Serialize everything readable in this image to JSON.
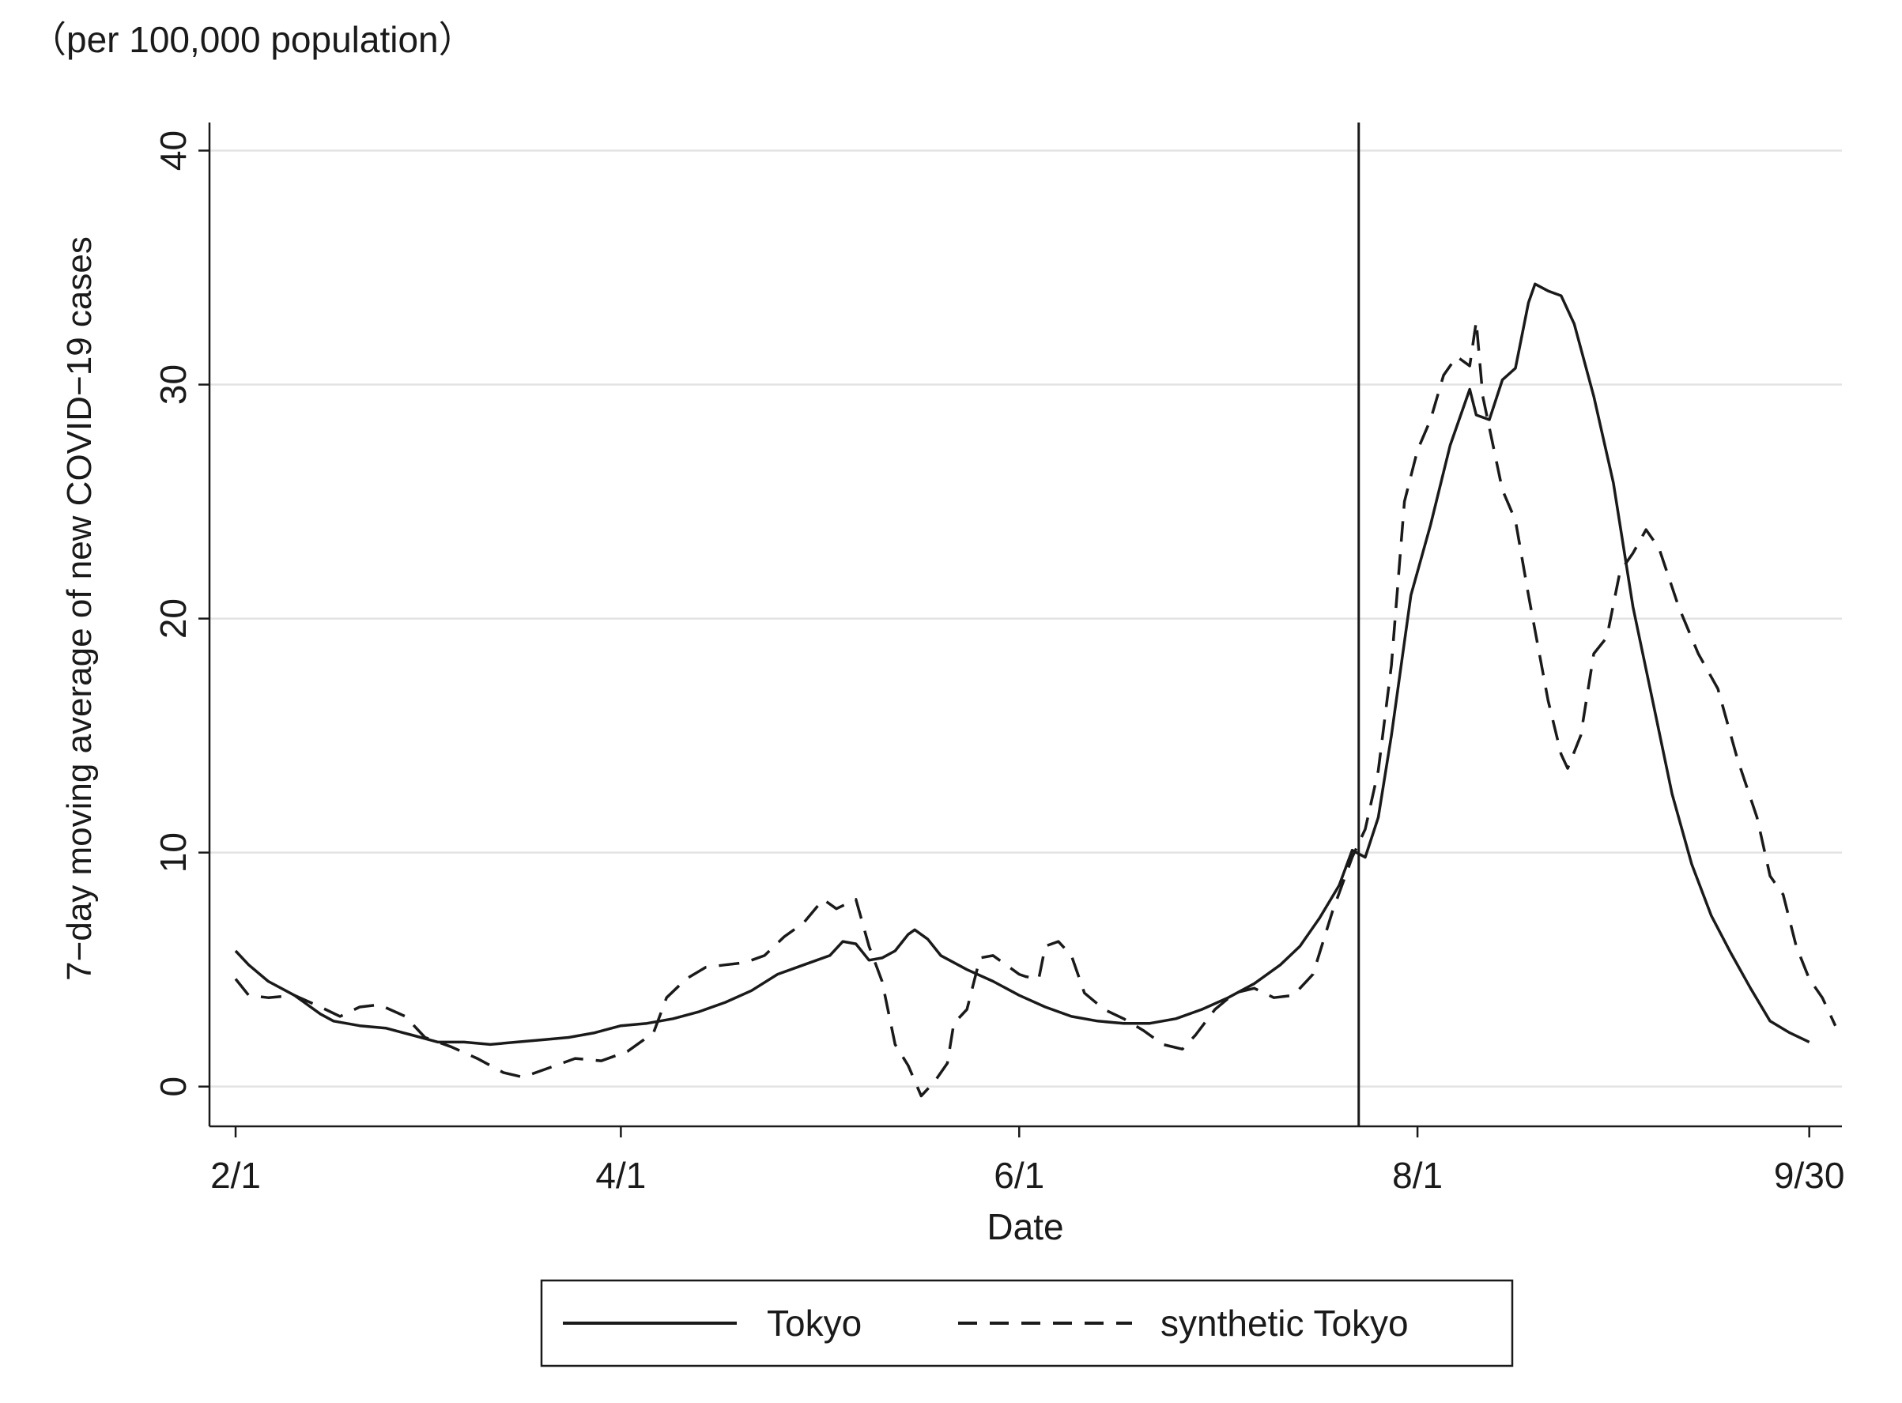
{
  "chart_data": {
    "type": "line",
    "unit_note": "（per 100,000 population）",
    "xlabel": "Date",
    "ylabel": "7−day moving average of new COVID−19 cases",
    "ylim": [
      -1.7,
      41.2
    ],
    "yticks": [
      0,
      10,
      20,
      30,
      40
    ],
    "xticks": [
      {
        "x": "2021-02-01",
        "label": "2/1"
      },
      {
        "x": "2021-04-01",
        "label": "4/1"
      },
      {
        "x": "2021-06-01",
        "label": "6/1"
      },
      {
        "x": "2021-08-01",
        "label": "8/1"
      },
      {
        "x": "2021-09-30",
        "label": "9/30"
      }
    ],
    "xlim": [
      "2021-01-28",
      "2021-10-05"
    ],
    "grid": "horizontal",
    "vertical_line_x": "2021-07-23",
    "legend": {
      "placement": "bottom",
      "entries": [
        "Tokyo",
        "synthetic Tokyo"
      ]
    },
    "colors": {
      "line": "#1a1a1a",
      "grid": "#e3e3e3"
    },
    "series": [
      {
        "name": "Tokyo",
        "style": "solid",
        "points": [
          [
            "2021-02-01",
            5.8
          ],
          [
            "2021-02-03",
            5.2
          ],
          [
            "2021-02-06",
            4.5
          ],
          [
            "2021-02-10",
            3.9
          ],
          [
            "2021-02-14",
            3.1
          ],
          [
            "2021-02-16",
            2.8
          ],
          [
            "2021-02-20",
            2.6
          ],
          [
            "2021-02-24",
            2.5
          ],
          [
            "2021-02-28",
            2.2
          ],
          [
            "2021-03-04",
            1.9
          ],
          [
            "2021-03-08",
            1.9
          ],
          [
            "2021-03-12",
            1.8
          ],
          [
            "2021-03-16",
            1.9
          ],
          [
            "2021-03-20",
            2.0
          ],
          [
            "2021-03-24",
            2.1
          ],
          [
            "2021-03-28",
            2.3
          ],
          [
            "2021-04-01",
            2.6
          ],
          [
            "2021-04-05",
            2.7
          ],
          [
            "2021-04-09",
            2.9
          ],
          [
            "2021-04-13",
            3.2
          ],
          [
            "2021-04-17",
            3.6
          ],
          [
            "2021-04-21",
            4.1
          ],
          [
            "2021-04-25",
            4.8
          ],
          [
            "2021-04-29",
            5.2
          ],
          [
            "2021-05-03",
            5.6
          ],
          [
            "2021-05-05",
            6.2
          ],
          [
            "2021-05-07",
            6.1
          ],
          [
            "2021-05-09",
            5.4
          ],
          [
            "2021-05-11",
            5.5
          ],
          [
            "2021-05-13",
            5.8
          ],
          [
            "2021-05-15",
            6.5
          ],
          [
            "2021-05-16",
            6.7
          ],
          [
            "2021-05-18",
            6.3
          ],
          [
            "2021-05-20",
            5.6
          ],
          [
            "2021-05-24",
            5.0
          ],
          [
            "2021-05-28",
            4.5
          ],
          [
            "2021-06-01",
            3.9
          ],
          [
            "2021-06-05",
            3.4
          ],
          [
            "2021-06-09",
            3.0
          ],
          [
            "2021-06-13",
            2.8
          ],
          [
            "2021-06-17",
            2.7
          ],
          [
            "2021-06-21",
            2.7
          ],
          [
            "2021-06-25",
            2.9
          ],
          [
            "2021-06-29",
            3.3
          ],
          [
            "2021-07-03",
            3.8
          ],
          [
            "2021-07-07",
            4.4
          ],
          [
            "2021-07-11",
            5.2
          ],
          [
            "2021-07-14",
            6.0
          ],
          [
            "2021-07-17",
            7.2
          ],
          [
            "2021-07-20",
            8.6
          ],
          [
            "2021-07-22",
            10.1
          ],
          [
            "2021-07-24",
            9.8
          ],
          [
            "2021-07-26",
            11.5
          ],
          [
            "2021-07-28",
            15.0
          ],
          [
            "2021-07-31",
            21.0
          ],
          [
            "2021-08-03",
            24.0
          ],
          [
            "2021-08-06",
            27.4
          ],
          [
            "2021-08-09",
            29.8
          ],
          [
            "2021-08-10",
            28.7
          ],
          [
            "2021-08-12",
            28.5
          ],
          [
            "2021-08-14",
            30.2
          ],
          [
            "2021-08-16",
            30.7
          ],
          [
            "2021-08-18",
            33.5
          ],
          [
            "2021-08-19",
            34.3
          ],
          [
            "2021-08-21",
            34.0
          ],
          [
            "2021-08-23",
            33.8
          ],
          [
            "2021-08-25",
            32.6
          ],
          [
            "2021-08-28",
            29.5
          ],
          [
            "2021-08-31",
            25.8
          ],
          [
            "2021-09-03",
            20.5
          ],
          [
            "2021-09-06",
            16.5
          ],
          [
            "2021-09-09",
            12.5
          ],
          [
            "2021-09-12",
            9.5
          ],
          [
            "2021-09-15",
            7.3
          ],
          [
            "2021-09-18",
            5.7
          ],
          [
            "2021-09-21",
            4.2
          ],
          [
            "2021-09-24",
            2.8
          ],
          [
            "2021-09-27",
            2.3
          ],
          [
            "2021-09-30",
            1.9
          ]
        ]
      },
      {
        "name": "synthetic Tokyo",
        "style": "dashed",
        "points": [
          [
            "2021-02-01",
            4.6
          ],
          [
            "2021-02-03",
            3.9
          ],
          [
            "2021-02-06",
            3.8
          ],
          [
            "2021-02-10",
            3.9
          ],
          [
            "2021-02-14",
            3.4
          ],
          [
            "2021-02-17",
            3.0
          ],
          [
            "2021-02-20",
            3.4
          ],
          [
            "2021-02-23",
            3.5
          ],
          [
            "2021-02-27",
            3.0
          ],
          [
            "2021-03-02",
            2.1
          ],
          [
            "2021-03-06",
            1.7
          ],
          [
            "2021-03-10",
            1.2
          ],
          [
            "2021-03-14",
            0.6
          ],
          [
            "2021-03-17",
            0.4
          ],
          [
            "2021-03-21",
            0.8
          ],
          [
            "2021-03-25",
            1.2
          ],
          [
            "2021-03-29",
            1.1
          ],
          [
            "2021-04-02",
            1.5
          ],
          [
            "2021-04-06",
            2.3
          ],
          [
            "2021-04-08",
            3.8
          ],
          [
            "2021-04-11",
            4.6
          ],
          [
            "2021-04-14",
            5.1
          ],
          [
            "2021-04-17",
            5.2
          ],
          [
            "2021-04-20",
            5.3
          ],
          [
            "2021-04-23",
            5.6
          ],
          [
            "2021-04-26",
            6.4
          ],
          [
            "2021-04-29",
            7.0
          ],
          [
            "2021-05-02",
            8.0
          ],
          [
            "2021-05-04",
            7.6
          ],
          [
            "2021-05-07",
            8.0
          ],
          [
            "2021-05-09",
            6.0
          ],
          [
            "2021-05-11",
            4.5
          ],
          [
            "2021-05-13",
            1.8
          ],
          [
            "2021-05-15",
            0.9
          ],
          [
            "2021-05-17",
            -0.4
          ],
          [
            "2021-05-19",
            0.2
          ],
          [
            "2021-05-21",
            1.0
          ],
          [
            "2021-05-22",
            2.7
          ],
          [
            "2021-05-24",
            3.3
          ],
          [
            "2021-05-26",
            5.5
          ],
          [
            "2021-05-28",
            5.6
          ],
          [
            "2021-05-30",
            5.2
          ],
          [
            "2021-06-01",
            4.8
          ],
          [
            "2021-06-02",
            4.7
          ],
          [
            "2021-06-04",
            4.6
          ],
          [
            "2021-06-05",
            6.0
          ],
          [
            "2021-06-07",
            6.2
          ],
          [
            "2021-06-09",
            5.6
          ],
          [
            "2021-06-11",
            4.0
          ],
          [
            "2021-06-14",
            3.3
          ],
          [
            "2021-06-17",
            2.9
          ],
          [
            "2021-06-20",
            2.4
          ],
          [
            "2021-06-23",
            1.8
          ],
          [
            "2021-06-26",
            1.6
          ],
          [
            "2021-06-28",
            2.2
          ],
          [
            "2021-07-01",
            3.3
          ],
          [
            "2021-07-04",
            4.0
          ],
          [
            "2021-07-07",
            4.2
          ],
          [
            "2021-07-10",
            3.8
          ],
          [
            "2021-07-13",
            3.9
          ],
          [
            "2021-07-16",
            4.8
          ],
          [
            "2021-07-19",
            7.5
          ],
          [
            "2021-07-22",
            9.8
          ],
          [
            "2021-07-24",
            11.0
          ],
          [
            "2021-07-26",
            13.5
          ],
          [
            "2021-07-28",
            18.0
          ],
          [
            "2021-07-30",
            25.0
          ],
          [
            "2021-08-01",
            27.2
          ],
          [
            "2021-08-03",
            28.5
          ],
          [
            "2021-08-05",
            30.4
          ],
          [
            "2021-08-07",
            31.2
          ],
          [
            "2021-08-09",
            30.8
          ],
          [
            "2021-08-10",
            32.7
          ],
          [
            "2021-08-11",
            29.5
          ],
          [
            "2021-08-14",
            25.5
          ],
          [
            "2021-08-16",
            24.2
          ],
          [
            "2021-08-18",
            21.0
          ],
          [
            "2021-08-21",
            16.5
          ],
          [
            "2021-08-23",
            14.2
          ],
          [
            "2021-08-24",
            13.6
          ],
          [
            "2021-08-26",
            15.0
          ],
          [
            "2021-08-28",
            18.5
          ],
          [
            "2021-08-30",
            19.2
          ],
          [
            "2021-09-01",
            22.0
          ],
          [
            "2021-09-03",
            22.8
          ],
          [
            "2021-09-05",
            23.8
          ],
          [
            "2021-09-07",
            23.0
          ],
          [
            "2021-09-10",
            20.5
          ],
          [
            "2021-09-13",
            18.5
          ],
          [
            "2021-09-16",
            17.0
          ],
          [
            "2021-09-19",
            14.0
          ],
          [
            "2021-09-22",
            11.5
          ],
          [
            "2021-09-24",
            9.0
          ],
          [
            "2021-09-26",
            8.2
          ],
          [
            "2021-09-28",
            6.0
          ],
          [
            "2021-09-30",
            4.6
          ],
          [
            "2021-10-02",
            3.8
          ],
          [
            "2021-10-04",
            2.6
          ]
        ]
      }
    ]
  }
}
